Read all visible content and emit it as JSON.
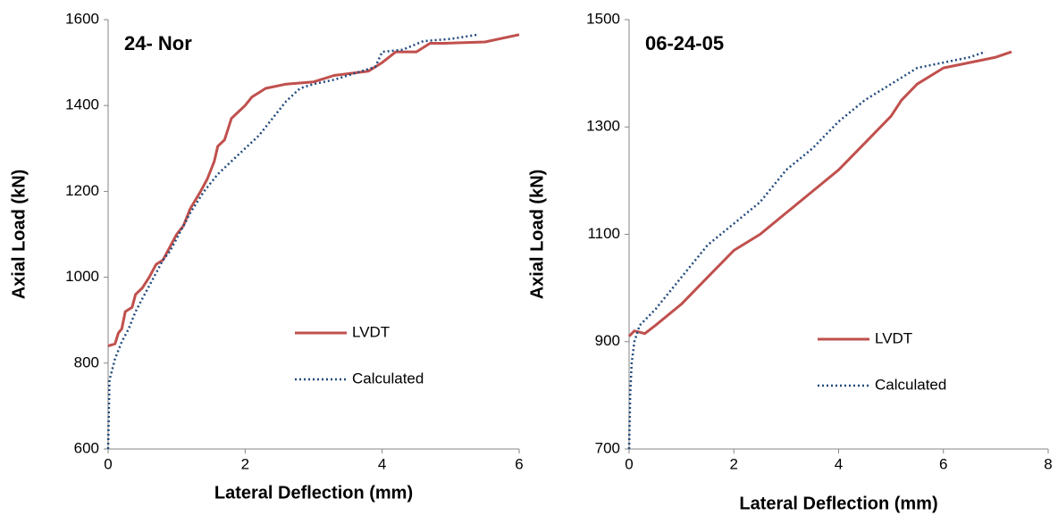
{
  "chart_data": [
    {
      "type": "line",
      "title": "24- Nor",
      "xlabel": "Lateral Deflection  (mm)",
      "ylabel": "Axial Load (kN)",
      "xlim": [
        0,
        6
      ],
      "xticks": [
        0,
        2,
        4,
        6
      ],
      "ylim": [
        600,
        1600
      ],
      "yticks": [
        600,
        800,
        1000,
        1200,
        1400,
        1600
      ],
      "series": [
        {
          "name": "LVDT",
          "color": "#c0504d",
          "line_style": "solid",
          "x": [
            0,
            0.1,
            0.15,
            0.2,
            0.25,
            0.35,
            0.4,
            0.5,
            0.6,
            0.7,
            0.8,
            0.9,
            1.0,
            1.1,
            1.2,
            1.35,
            1.45,
            1.55,
            1.6,
            1.7,
            1.8,
            1.9,
            2.0,
            2.1,
            2.3,
            2.6,
            3.0,
            3.3,
            3.8,
            4.0,
            4.2,
            4.5,
            4.7,
            4.9,
            5.5,
            6.0
          ],
          "values": [
            840,
            845,
            870,
            880,
            920,
            930,
            960,
            975,
            1000,
            1030,
            1040,
            1070,
            1100,
            1120,
            1160,
            1200,
            1230,
            1270,
            1305,
            1320,
            1370,
            1385,
            1400,
            1420,
            1440,
            1450,
            1455,
            1470,
            1480,
            1500,
            1525,
            1525,
            1545,
            1545,
            1548,
            1565
          ]
        },
        {
          "name": "Calculated",
          "color": "#1f497d",
          "line_style": "dotted",
          "x": [
            0,
            0.02,
            0.1,
            0.2,
            0.3,
            0.4,
            0.5,
            0.6,
            0.7,
            0.8,
            0.9,
            1.0,
            1.2,
            1.4,
            1.6,
            1.8,
            2.0,
            2.2,
            2.4,
            2.6,
            2.8,
            3.0,
            3.3,
            3.6,
            3.9,
            4.0,
            4.3,
            4.6,
            5.0,
            5.4
          ],
          "values": [
            600,
            760,
            810,
            850,
            880,
            920,
            950,
            980,
            1010,
            1040,
            1060,
            1090,
            1150,
            1200,
            1240,
            1270,
            1300,
            1330,
            1370,
            1410,
            1440,
            1450,
            1460,
            1475,
            1490,
            1525,
            1530,
            1550,
            1555,
            1565
          ]
        }
      ]
    },
    {
      "type": "line",
      "title": "06-24-05",
      "xlabel": "Lateral Deflection  (mm)",
      "ylabel": "Axial Load (kN)",
      "xlim": [
        0,
        8
      ],
      "xticks": [
        0,
        2,
        4,
        6,
        8
      ],
      "ylim": [
        700,
        1500
      ],
      "yticks": [
        700,
        900,
        1100,
        1300,
        1500
      ],
      "series": [
        {
          "name": "LVDT",
          "color": "#c0504d",
          "line_style": "solid",
          "x": [
            0,
            0.1,
            0.3,
            0.5,
            1.0,
            1.5,
            2.0,
            2.5,
            3.0,
            3.5,
            4.0,
            4.5,
            5.0,
            5.2,
            5.5,
            6.0,
            6.5,
            7.0,
            7.3
          ],
          "values": [
            910,
            920,
            915,
            930,
            970,
            1020,
            1070,
            1100,
            1140,
            1180,
            1220,
            1270,
            1320,
            1350,
            1380,
            1410,
            1420,
            1430,
            1440
          ]
        },
        {
          "name": "Calculated",
          "color": "#1f497d",
          "line_style": "dotted",
          "x": [
            0,
            0.02,
            0.05,
            0.1,
            0.2,
            0.5,
            1.0,
            1.5,
            2.0,
            2.5,
            3.0,
            3.5,
            4.0,
            4.5,
            5.0,
            5.5,
            6.0,
            6.5,
            6.8
          ],
          "values": [
            700,
            800,
            860,
            900,
            930,
            960,
            1020,
            1080,
            1120,
            1160,
            1220,
            1260,
            1310,
            1350,
            1380,
            1410,
            1420,
            1430,
            1440
          ]
        }
      ]
    }
  ]
}
